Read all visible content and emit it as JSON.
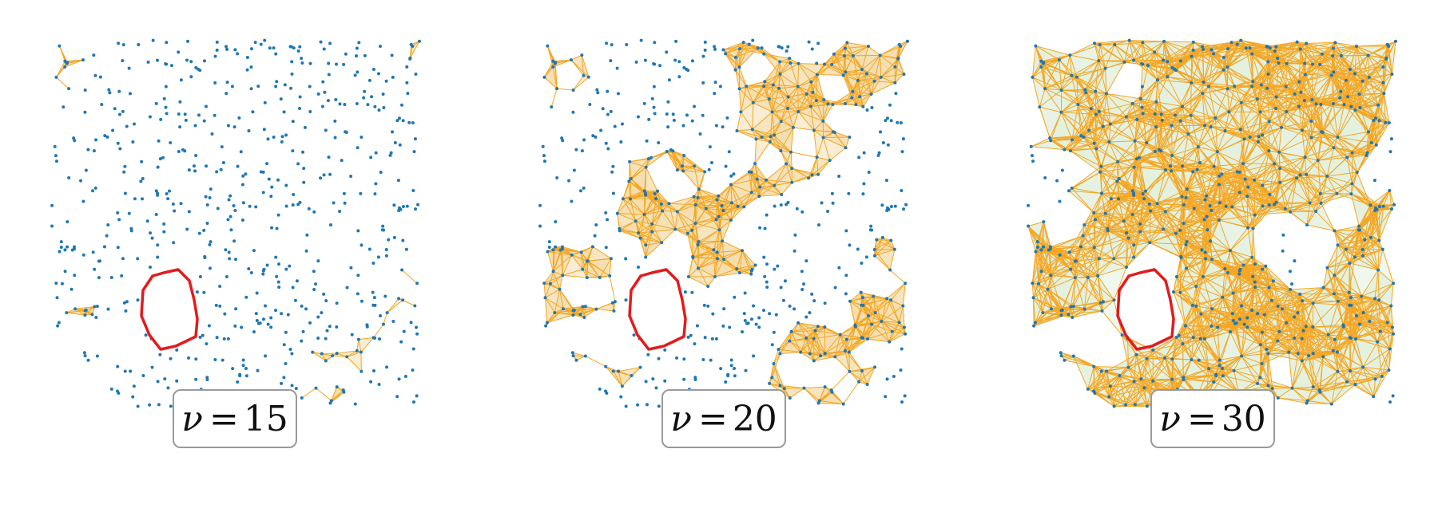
{
  "panels": [
    {
      "label_symbol": "ν",
      "label_eq": "=",
      "label_value": "15",
      "density": 0.28
    },
    {
      "label_symbol": "ν",
      "label_eq": "=",
      "label_value": "20",
      "density": 0.55
    },
    {
      "label_symbol": "ν",
      "label_eq": "=",
      "label_value": "30",
      "density": 0.9
    }
  ],
  "colors": {
    "point": "#1f77b4",
    "edge": "#f5a623",
    "fill": "#e3f0df",
    "fill_panel_1": "#f4dfae",
    "fill_panel_2": "#f4dfae",
    "loop": "#e41a1c",
    "box_border": "#9a9a9a"
  }
}
